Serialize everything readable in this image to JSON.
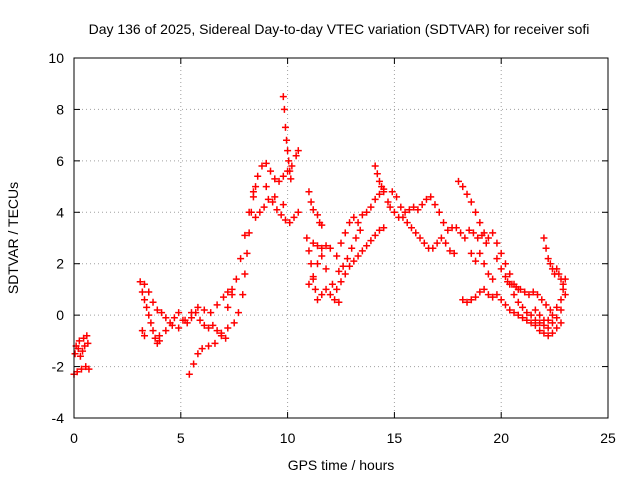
{
  "chart_data": {
    "type": "scatter",
    "title": "Day 136 of 2025, Sidereal Day-to-day VTEC variation (SDTVAR) for receiver sofi",
    "xlabel": "GPS time / hours",
    "ylabel": "SDTVAR / TECUs",
    "xlim": [
      0,
      25
    ],
    "ylim": [
      -4,
      10
    ],
    "xticks": [
      0,
      5,
      10,
      15,
      20,
      25
    ],
    "yticks": [
      -4,
      -2,
      0,
      2,
      4,
      6,
      8,
      10
    ],
    "grid": true,
    "marker": "+",
    "color": "#ff0000",
    "series": [
      {
        "name": "sdtvar",
        "points": [
          [
            0.0,
            -2.3
          ],
          [
            0.05,
            -1.5
          ],
          [
            0.1,
            -1.2
          ],
          [
            0.15,
            -2.2
          ],
          [
            0.2,
            -1.3
          ],
          [
            0.25,
            -1.0
          ],
          [
            0.3,
            -1.6
          ],
          [
            0.35,
            -2.1
          ],
          [
            0.4,
            -1.4
          ],
          [
            0.45,
            -0.9
          ],
          [
            0.5,
            -1.2
          ],
          [
            0.55,
            -2.0
          ],
          [
            0.6,
            -0.8
          ],
          [
            0.65,
            -1.1
          ],
          [
            0.7,
            -2.1
          ],
          [
            3.1,
            1.3
          ],
          [
            3.2,
            0.9
          ],
          [
            3.3,
            0.6
          ],
          [
            3.4,
            0.3
          ],
          [
            3.5,
            0.0
          ],
          [
            3.6,
            -0.3
          ],
          [
            3.7,
            -0.6
          ],
          [
            3.8,
            -0.9
          ],
          [
            3.9,
            -1.1
          ],
          [
            4.0,
            -1.0
          ],
          [
            3.2,
            -0.6
          ],
          [
            3.3,
            -0.8
          ],
          [
            3.3,
            1.2
          ],
          [
            3.5,
            0.9
          ],
          [
            3.7,
            0.5
          ],
          [
            3.9,
            0.2
          ],
          [
            4.1,
            0.1
          ],
          [
            4.3,
            -0.1
          ],
          [
            4.5,
            -0.3
          ],
          [
            4.7,
            -0.1
          ],
          [
            4.9,
            0.1
          ],
          [
            5.1,
            -0.2
          ],
          [
            5.3,
            -0.3
          ],
          [
            5.5,
            -0.1
          ],
          [
            5.7,
            0.1
          ],
          [
            5.9,
            -0.2
          ],
          [
            6.1,
            -0.4
          ],
          [
            6.3,
            -0.5
          ],
          [
            6.5,
            -0.4
          ],
          [
            6.7,
            -0.6
          ],
          [
            6.9,
            -0.7
          ],
          [
            7.1,
            -0.9
          ],
          [
            4.0,
            -0.8
          ],
          [
            4.3,
            -0.6
          ],
          [
            4.6,
            -0.4
          ],
          [
            4.9,
            -0.5
          ],
          [
            5.2,
            -0.2
          ],
          [
            5.5,
            0.1
          ],
          [
            5.8,
            0.3
          ],
          [
            6.1,
            0.2
          ],
          [
            6.4,
            0.1
          ],
          [
            6.7,
            0.4
          ],
          [
            7.0,
            0.7
          ],
          [
            7.2,
            0.9
          ],
          [
            7.4,
            1.0
          ],
          [
            5.4,
            -2.3
          ],
          [
            5.6,
            -1.9
          ],
          [
            5.8,
            -1.5
          ],
          [
            6.0,
            -1.3
          ],
          [
            6.3,
            -1.2
          ],
          [
            6.6,
            -1.1
          ],
          [
            6.9,
            -0.8
          ],
          [
            7.2,
            -0.5
          ],
          [
            7.5,
            -0.3
          ],
          [
            7.7,
            0.1
          ],
          [
            7.9,
            0.8
          ],
          [
            8.0,
            1.6
          ],
          [
            8.1,
            2.4
          ],
          [
            8.2,
            3.2
          ],
          [
            8.3,
            4.0
          ],
          [
            8.4,
            4.6
          ],
          [
            8.5,
            5.0
          ],
          [
            7.2,
            0.3
          ],
          [
            7.4,
            0.8
          ],
          [
            7.6,
            1.4
          ],
          [
            7.8,
            2.2
          ],
          [
            8.0,
            3.1
          ],
          [
            8.2,
            4.0
          ],
          [
            8.4,
            4.8
          ],
          [
            8.6,
            5.4
          ],
          [
            8.8,
            5.8
          ],
          [
            9.0,
            5.9
          ],
          [
            9.2,
            5.6
          ],
          [
            9.4,
            5.3
          ],
          [
            9.6,
            5.2
          ],
          [
            9.8,
            5.4
          ],
          [
            10.0,
            5.6
          ],
          [
            10.2,
            5.8
          ],
          [
            10.4,
            6.2
          ],
          [
            10.5,
            6.4
          ],
          [
            8.5,
            3.8
          ],
          [
            8.7,
            4.0
          ],
          [
            8.9,
            4.2
          ],
          [
            9.1,
            4.5
          ],
          [
            9.3,
            4.4
          ],
          [
            9.5,
            4.1
          ],
          [
            9.7,
            3.9
          ],
          [
            9.9,
            3.7
          ],
          [
            10.1,
            3.6
          ],
          [
            10.3,
            3.8
          ],
          [
            10.5,
            4.0
          ],
          [
            9.0,
            5.0
          ],
          [
            9.4,
            4.6
          ],
          [
            9.8,
            4.3
          ],
          [
            9.8,
            8.5
          ],
          [
            9.85,
            8.0
          ],
          [
            9.9,
            7.3
          ],
          [
            9.95,
            6.8
          ],
          [
            10.0,
            6.4
          ],
          [
            10.05,
            6.0
          ],
          [
            10.1,
            5.6
          ],
          [
            10.15,
            5.3
          ],
          [
            11.0,
            4.8
          ],
          [
            11.1,
            4.4
          ],
          [
            11.2,
            4.1
          ],
          [
            11.4,
            3.9
          ],
          [
            11.5,
            3.6
          ],
          [
            11.6,
            3.5
          ],
          [
            10.9,
            3.0
          ],
          [
            11.0,
            2.5
          ],
          [
            11.1,
            2.0
          ],
          [
            11.2,
            1.5
          ],
          [
            11.3,
            1.0
          ],
          [
            11.4,
            0.6
          ],
          [
            11.6,
            0.8
          ],
          [
            11.8,
            1.0
          ],
          [
            12.0,
            0.8
          ],
          [
            12.2,
            0.6
          ],
          [
            12.4,
            0.5
          ],
          [
            11.2,
            2.8
          ],
          [
            11.4,
            2.7
          ],
          [
            11.6,
            2.6
          ],
          [
            11.8,
            2.7
          ],
          [
            12.0,
            2.6
          ],
          [
            11.0,
            1.2
          ],
          [
            11.2,
            1.4
          ],
          [
            11.4,
            2.0
          ],
          [
            11.6,
            2.3
          ],
          [
            11.8,
            1.8
          ],
          [
            12.1,
            1.2
          ],
          [
            12.3,
            1.0
          ],
          [
            12.5,
            1.3
          ],
          [
            12.7,
            1.6
          ],
          [
            12.9,
            1.9
          ],
          [
            13.1,
            2.1
          ],
          [
            13.3,
            2.3
          ],
          [
            13.5,
            2.5
          ],
          [
            13.7,
            2.7
          ],
          [
            13.9,
            2.9
          ],
          [
            14.1,
            3.1
          ],
          [
            14.3,
            3.3
          ],
          [
            14.5,
            3.4
          ],
          [
            12.3,
            2.3
          ],
          [
            12.5,
            2.8
          ],
          [
            12.7,
            3.2
          ],
          [
            12.9,
            3.6
          ],
          [
            13.1,
            3.8
          ],
          [
            13.3,
            3.6
          ],
          [
            13.5,
            3.9
          ],
          [
            13.7,
            4.0
          ],
          [
            13.9,
            4.2
          ],
          [
            14.1,
            4.5
          ],
          [
            14.3,
            4.7
          ],
          [
            14.5,
            4.9
          ],
          [
            12.4,
            1.7
          ],
          [
            12.6,
            1.9
          ],
          [
            12.8,
            2.2
          ],
          [
            13.0,
            2.6
          ],
          [
            13.2,
            3.0
          ],
          [
            13.4,
            3.3
          ],
          [
            14.1,
            5.8
          ],
          [
            14.2,
            5.5
          ],
          [
            14.3,
            5.2
          ],
          [
            14.4,
            5.0
          ],
          [
            14.5,
            4.8
          ],
          [
            14.7,
            4.4
          ],
          [
            14.9,
            4.8
          ],
          [
            15.1,
            4.6
          ],
          [
            15.3,
            4.2
          ],
          [
            15.5,
            4.0
          ],
          [
            15.7,
            4.1
          ],
          [
            15.9,
            4.2
          ],
          [
            16.1,
            4.1
          ],
          [
            16.3,
            4.3
          ],
          [
            16.5,
            4.5
          ],
          [
            16.7,
            4.6
          ],
          [
            16.9,
            4.3
          ],
          [
            17.1,
            4.0
          ],
          [
            17.3,
            3.6
          ],
          [
            17.5,
            3.3
          ],
          [
            17.7,
            3.4
          ],
          [
            17.9,
            3.4
          ],
          [
            18.1,
            3.2
          ],
          [
            18.3,
            3.0
          ],
          [
            18.5,
            3.3
          ],
          [
            18.7,
            3.2
          ],
          [
            18.9,
            3.0
          ],
          [
            19.1,
            3.1
          ],
          [
            19.3,
            2.8
          ],
          [
            14.8,
            4.2
          ],
          [
            15.0,
            4.0
          ],
          [
            15.2,
            3.8
          ],
          [
            15.4,
            3.8
          ],
          [
            15.6,
            3.6
          ],
          [
            15.8,
            3.4
          ],
          [
            16.0,
            3.2
          ],
          [
            16.2,
            3.0
          ],
          [
            16.4,
            2.8
          ],
          [
            16.6,
            2.6
          ],
          [
            16.8,
            2.6
          ],
          [
            17.0,
            2.8
          ],
          [
            17.2,
            3.0
          ],
          [
            17.4,
            2.8
          ],
          [
            17.6,
            2.5
          ],
          [
            17.8,
            2.4
          ],
          [
            18.0,
            5.2
          ],
          [
            18.2,
            5.0
          ],
          [
            18.4,
            4.7
          ],
          [
            18.6,
            4.4
          ],
          [
            18.8,
            4.0
          ],
          [
            19.0,
            3.6
          ],
          [
            19.2,
            3.2
          ],
          [
            19.4,
            3.0
          ],
          [
            19.6,
            3.2
          ],
          [
            19.8,
            2.8
          ],
          [
            20.0,
            2.4
          ],
          [
            20.2,
            2.0
          ],
          [
            20.4,
            1.6
          ],
          [
            20.6,
            1.2
          ],
          [
            20.8,
            1.0
          ],
          [
            18.6,
            2.4
          ],
          [
            18.8,
            2.1
          ],
          [
            19.0,
            2.4
          ],
          [
            19.2,
            2.0
          ],
          [
            19.4,
            1.6
          ],
          [
            19.6,
            1.4
          ],
          [
            18.2,
            0.6
          ],
          [
            18.4,
            0.5
          ],
          [
            18.6,
            0.6
          ],
          [
            18.8,
            0.7
          ],
          [
            19.0,
            0.9
          ],
          [
            19.2,
            1.0
          ],
          [
            19.4,
            0.8
          ],
          [
            19.6,
            0.7
          ],
          [
            19.8,
            0.8
          ],
          [
            20.0,
            0.6
          ],
          [
            20.2,
            0.4
          ],
          [
            20.4,
            0.2
          ],
          [
            20.6,
            0.1
          ],
          [
            20.8,
            0.0
          ],
          [
            21.0,
            -0.1
          ],
          [
            21.2,
            -0.2
          ],
          [
            21.4,
            -0.3
          ],
          [
            21.6,
            -0.4
          ],
          [
            21.8,
            -0.6
          ],
          [
            22.0,
            -0.7
          ],
          [
            22.2,
            -0.8
          ],
          [
            22.4,
            -0.7
          ],
          [
            22.6,
            -0.5
          ],
          [
            22.8,
            -0.3
          ],
          [
            19.8,
            2.2
          ],
          [
            20.0,
            1.8
          ],
          [
            20.2,
            1.5
          ],
          [
            20.4,
            1.2
          ],
          [
            20.6,
            0.8
          ],
          [
            20.8,
            0.5
          ],
          [
            21.0,
            0.3
          ],
          [
            21.2,
            0.1
          ],
          [
            21.4,
            0.0
          ],
          [
            21.6,
            -0.2
          ],
          [
            21.8,
            -0.3
          ],
          [
            22.0,
            -0.4
          ],
          [
            22.2,
            -0.2
          ],
          [
            22.4,
            0.0
          ],
          [
            22.6,
            0.3
          ],
          [
            22.8,
            0.6
          ],
          [
            22.9,
            1.0
          ],
          [
            23.0,
            1.4
          ],
          [
            20.3,
            1.3
          ],
          [
            20.5,
            1.2
          ],
          [
            20.7,
            1.1
          ],
          [
            20.9,
            1.0
          ],
          [
            21.1,
            0.9
          ],
          [
            21.3,
            0.8
          ],
          [
            21.5,
            0.9
          ],
          [
            21.7,
            0.8
          ],
          [
            21.9,
            0.6
          ],
          [
            22.1,
            0.4
          ],
          [
            22.3,
            0.2
          ],
          [
            22.0,
            3.0
          ],
          [
            22.1,
            2.6
          ],
          [
            22.2,
            2.2
          ],
          [
            22.3,
            2.0
          ],
          [
            22.4,
            1.8
          ],
          [
            22.5,
            1.6
          ],
          [
            22.6,
            1.8
          ],
          [
            22.7,
            1.6
          ],
          [
            22.8,
            1.4
          ],
          [
            22.9,
            1.2
          ],
          [
            23.0,
            0.8
          ],
          [
            21.6,
            0.2
          ],
          [
            21.8,
            0.0
          ],
          [
            22.0,
            -0.2
          ],
          [
            22.2,
            -0.5
          ],
          [
            22.4,
            -0.3
          ],
          [
            22.6,
            -0.1
          ],
          [
            22.8,
            0.2
          ]
        ]
      }
    ]
  }
}
